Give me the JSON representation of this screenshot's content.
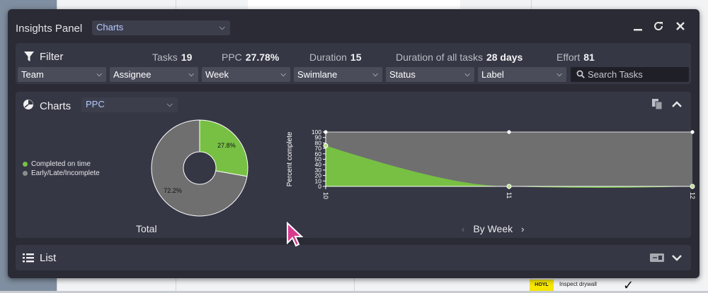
{
  "panel": {
    "title": "Insights Panel",
    "view_select": "Charts"
  },
  "filter": {
    "title": "Filter",
    "stats": [
      {
        "label": "Tasks",
        "value": "19"
      },
      {
        "label": "PPC",
        "value": "27.78%"
      },
      {
        "label": "Duration",
        "value": "15"
      },
      {
        "label": "Duration of all tasks",
        "value": "28 days"
      },
      {
        "label": "Effort",
        "value": "81"
      }
    ],
    "selects": [
      "Team",
      "Assignee",
      "Week",
      "Swimlane",
      "Status",
      "Label"
    ],
    "search_placeholder": "Search Tasks"
  },
  "charts": {
    "title": "Charts",
    "metric_select": "PPC",
    "total_label": "Total",
    "byweek_label": "By Week",
    "prev_symbol": "‹",
    "next_symbol": "›"
  },
  "chart_data": [
    {
      "type": "pie",
      "labels": [
        "Completed on time",
        "Early/Late/Incomplete"
      ],
      "values": [
        27.8,
        72.2
      ],
      "value_labels": [
        "27.8%",
        "72.2%"
      ],
      "colors": [
        "#77c043",
        "#6f6f70"
      ],
      "legend": "left"
    },
    {
      "type": "area",
      "categories": [
        "10",
        "11",
        "12"
      ],
      "series": [
        {
          "values": [
            75,
            0,
            0
          ],
          "color": "#77c043"
        },
        {
          "values": [
            100,
            100,
            100
          ],
          "color": "#6f6f70"
        }
      ],
      "ylabel": "Percent complete",
      "ylim": [
        0,
        100
      ],
      "yticks": [
        "0",
        "10",
        "20",
        "30",
        "40",
        "50",
        "60",
        "70",
        "80",
        "90",
        "100"
      ]
    }
  ],
  "list": {
    "title": "List"
  },
  "background": {
    "tag": "HOYL",
    "task_text": "Inspect drywall"
  },
  "icons": [
    "filter-funnel-icon",
    "chart-icon",
    "list-icon",
    "minimize-icon",
    "refresh-icon",
    "close-icon",
    "copy-icon",
    "chevron-up-icon",
    "chevron-down-icon",
    "csv-icon",
    "search-icon"
  ]
}
